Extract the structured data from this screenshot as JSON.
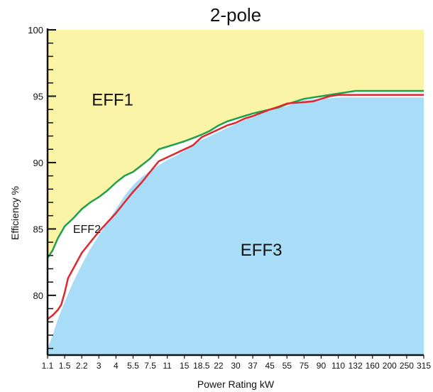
{
  "chart_data": {
    "type": "area",
    "title": "2-pole",
    "xlabel": "Power Rating kW",
    "ylabel": "Efficiency  %",
    "ylim": [
      75.5,
      100
    ],
    "yticks": [
      80,
      85,
      90,
      95,
      100
    ],
    "categories": [
      "1.1",
      "1.5",
      "2.2",
      "3",
      "4",
      "5.5",
      "7.5",
      "11",
      "15",
      "18.5",
      "22",
      "30",
      "37",
      "45",
      "55",
      "75",
      "90",
      "110",
      "132",
      "160",
      "200",
      "250",
      "315"
    ],
    "grid": false,
    "series": [
      {
        "name": "EFF1",
        "color": "#1fa04a",
        "x": [
          0,
          0.3,
          0.6,
          1,
          1.5,
          2,
          2.5,
          3,
          3.5,
          4,
          4.5,
          5,
          5.5,
          6,
          6.5,
          7,
          7.5,
          8,
          8.5,
          9,
          9.5,
          10,
          10.5,
          11,
          11.5,
          12,
          12.5,
          13,
          13.5,
          14,
          14.5,
          15,
          15.5,
          16,
          16.5,
          17,
          17.5,
          18,
          19,
          20,
          21,
          22
        ],
        "values": [
          82.8,
          83.4,
          84.3,
          85.2,
          85.8,
          86.5,
          87.0,
          87.4,
          87.9,
          88.5,
          89.0,
          89.3,
          89.8,
          90.3,
          91.0,
          91.2,
          91.4,
          91.6,
          91.85,
          92.1,
          92.4,
          92.8,
          93.1,
          93.3,
          93.5,
          93.7,
          93.85,
          94.0,
          94.15,
          94.4,
          94.6,
          94.8,
          94.9,
          95.0,
          95.1,
          95.2,
          95.3,
          95.4,
          95.4,
          95.4,
          95.4,
          95.4
        ]
      },
      {
        "name": "EFF2",
        "color": "#e0262e",
        "x": [
          0,
          0.3,
          0.6,
          0.8,
          1,
          1.2,
          1.5,
          2,
          2.5,
          3,
          3.5,
          4,
          4.5,
          5,
          5.5,
          6,
          6.5,
          7,
          7.5,
          8,
          8.5,
          9,
          9.5,
          10,
          10.5,
          11,
          11.5,
          12,
          12.5,
          13,
          13.5,
          14,
          14.5,
          15,
          15.5,
          16,
          16.5,
          17,
          17.5,
          18,
          19,
          20,
          21,
          22
        ],
        "values": [
          78.2,
          78.5,
          78.9,
          79.3,
          80.2,
          81.3,
          82.0,
          83.2,
          84.0,
          84.8,
          85.5,
          86.2,
          87.0,
          87.8,
          88.5,
          89.3,
          90.1,
          90.4,
          90.7,
          91.0,
          91.3,
          91.9,
          92.2,
          92.5,
          92.8,
          93.0,
          93.3,
          93.5,
          93.75,
          94.0,
          94.2,
          94.45,
          94.5,
          94.55,
          94.6,
          94.8,
          95.0,
          95.1,
          95.1,
          95.1,
          95.1,
          95.1,
          95.1,
          95.1
        ]
      },
      {
        "name": "EFF3",
        "color": "#a9dcf6",
        "x": [
          0,
          0.3,
          0.6,
          1,
          1.5,
          2,
          2.5,
          3,
          3.5,
          4,
          4.5,
          5,
          5.5,
          6,
          6.5,
          7,
          7.5,
          8,
          8.5,
          9,
          9.5,
          10,
          10.5,
          11,
          11.5,
          12,
          12.5,
          13,
          13.5,
          14,
          14.5,
          15,
          15.5,
          16,
          16.5,
          17,
          17.5,
          18,
          19,
          20,
          21,
          22
        ],
        "values": [
          76.0,
          77.0,
          78.2,
          79.5,
          81.0,
          82.3,
          83.5,
          84.5,
          85.5,
          86.5,
          87.5,
          88.3,
          88.9,
          89.4,
          89.8,
          90.2,
          90.5,
          90.9,
          91.4,
          91.7,
          92.0,
          92.3,
          92.6,
          92.9,
          93.2,
          93.4,
          93.7,
          93.95,
          94.1,
          94.25,
          94.5,
          94.7,
          94.75,
          94.8,
          94.85,
          94.9,
          94.9,
          94.9,
          94.9,
          94.9,
          94.9,
          94.9
        ]
      }
    ],
    "region_labels": [
      {
        "text": "EFF1",
        "x": 3.8,
        "y": 94.3,
        "size": "large"
      },
      {
        "text": "EFF2",
        "x": 2.3,
        "y": 84.7,
        "size": "small"
      },
      {
        "text": "EFF3",
        "x": 12.5,
        "y": 83.0,
        "size": "large"
      }
    ],
    "colors": {
      "eff1_fill": "#fbf3a6",
      "eff2_fill": "#ffffff",
      "eff3_fill": "#a9dcf6",
      "axis": "#111111"
    }
  }
}
